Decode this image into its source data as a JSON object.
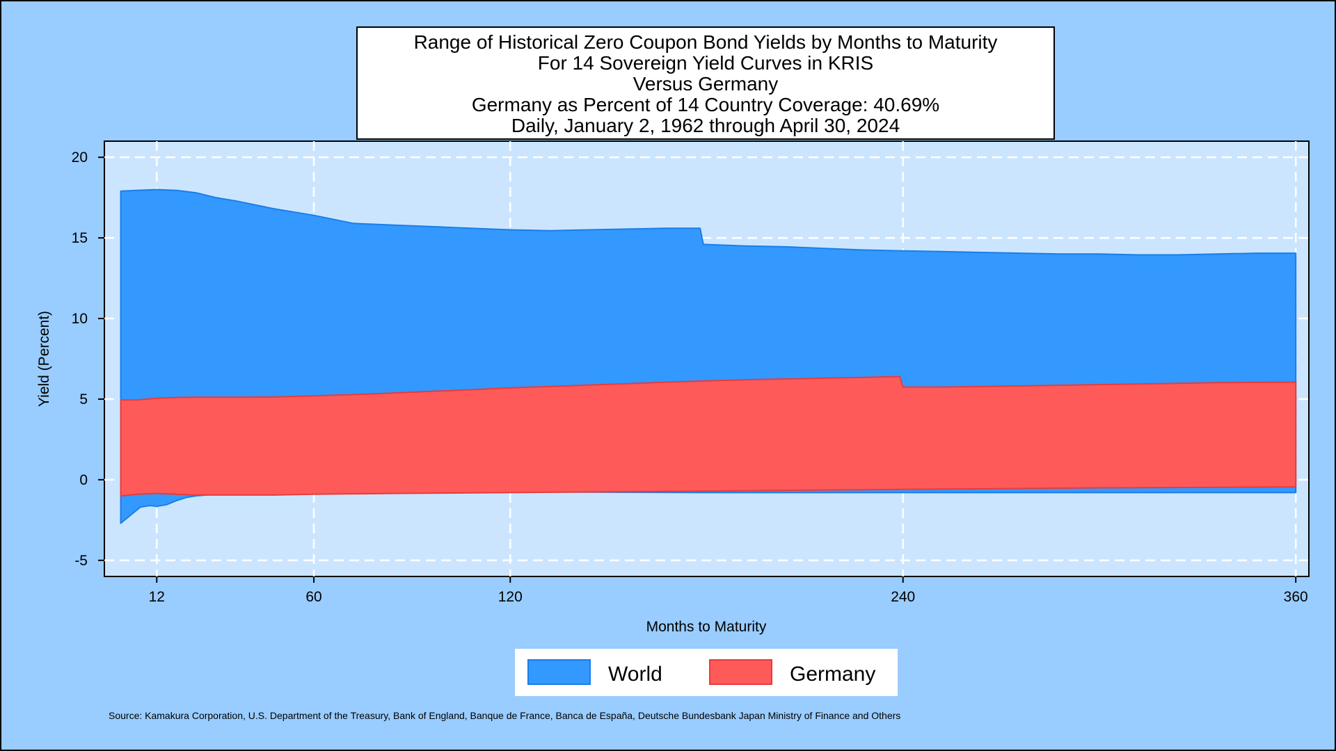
{
  "chart_data": {
    "type": "area",
    "title_lines": [
      "Range of Historical Zero Coupon Bond Yields by Months to Maturity",
      "For 14 Sovereign Yield Curves in KRIS",
      "Versus Germany",
      "Germany as Percent of 14 Country Coverage: 40.69%",
      "Daily, January 2, 1962 through April 30, 2024"
    ],
    "xlabel": "Months to Maturity",
    "ylabel": "Yield (Percent)",
    "xlim": [
      -4,
      364
    ],
    "ylim": [
      -6,
      21
    ],
    "x_ticks": [
      12,
      60,
      120,
      240,
      360
    ],
    "y_ticks": [
      20,
      15,
      10,
      5,
      0,
      -5
    ],
    "y_tick_labels": [
      "20",
      "15",
      "10",
      "5",
      "0",
      "-5"
    ],
    "grid": true,
    "legend_position": "bottom",
    "series": [
      {
        "name": "World",
        "color": "#3399ff",
        "upper": [
          [
            1,
            17.9
          ],
          [
            6,
            17.95
          ],
          [
            12,
            18.0
          ],
          [
            18,
            17.95
          ],
          [
            24,
            17.8
          ],
          [
            30,
            17.5
          ],
          [
            36,
            17.3
          ],
          [
            48,
            16.8
          ],
          [
            60,
            16.4
          ],
          [
            72,
            15.9
          ],
          [
            84,
            15.8
          ],
          [
            96,
            15.7
          ],
          [
            108,
            15.6
          ],
          [
            120,
            15.5
          ],
          [
            132,
            15.45
          ],
          [
            144,
            15.5
          ],
          [
            156,
            15.55
          ],
          [
            168,
            15.6
          ],
          [
            178,
            15.6
          ],
          [
            179,
            14.6
          ],
          [
            192,
            14.5
          ],
          [
            204,
            14.45
          ],
          [
            216,
            14.35
          ],
          [
            228,
            14.25
          ],
          [
            240,
            14.2
          ],
          [
            252,
            14.15
          ],
          [
            264,
            14.1
          ],
          [
            276,
            14.05
          ],
          [
            288,
            14.0
          ],
          [
            300,
            14.0
          ],
          [
            312,
            13.95
          ],
          [
            324,
            13.95
          ],
          [
            336,
            14.0
          ],
          [
            348,
            14.05
          ],
          [
            360,
            14.05
          ]
        ],
        "lower": [
          [
            1,
            -2.7
          ],
          [
            4,
            -2.2
          ],
          [
            7,
            -1.7
          ],
          [
            10,
            -1.6
          ],
          [
            12,
            -1.65
          ],
          [
            15,
            -1.55
          ],
          [
            18,
            -1.3
          ],
          [
            21,
            -1.1
          ],
          [
            24,
            -1.0
          ],
          [
            30,
            -0.9
          ],
          [
            36,
            -0.85
          ],
          [
            48,
            -0.85
          ],
          [
            60,
            -0.85
          ],
          [
            84,
            -0.8
          ],
          [
            120,
            -0.75
          ],
          [
            180,
            -0.8
          ],
          [
            240,
            -0.8
          ],
          [
            300,
            -0.8
          ],
          [
            360,
            -0.8
          ]
        ]
      },
      {
        "name": "Germany",
        "color": "#ff5a5a",
        "upper": [
          [
            1,
            4.95
          ],
          [
            6,
            4.95
          ],
          [
            12,
            5.05
          ],
          [
            18,
            5.1
          ],
          [
            24,
            5.12
          ],
          [
            36,
            5.12
          ],
          [
            48,
            5.13
          ],
          [
            60,
            5.2
          ],
          [
            72,
            5.28
          ],
          [
            84,
            5.38
          ],
          [
            96,
            5.48
          ],
          [
            108,
            5.58
          ],
          [
            120,
            5.7
          ],
          [
            132,
            5.78
          ],
          [
            144,
            5.87
          ],
          [
            156,
            5.96
          ],
          [
            168,
            6.05
          ],
          [
            180,
            6.13
          ],
          [
            192,
            6.2
          ],
          [
            204,
            6.25
          ],
          [
            216,
            6.3
          ],
          [
            228,
            6.35
          ],
          [
            239,
            6.4
          ],
          [
            240,
            5.75
          ],
          [
            252,
            5.75
          ],
          [
            264,
            5.78
          ],
          [
            276,
            5.82
          ],
          [
            288,
            5.86
          ],
          [
            300,
            5.9
          ],
          [
            312,
            5.94
          ],
          [
            324,
            5.98
          ],
          [
            336,
            6.02
          ],
          [
            348,
            6.04
          ],
          [
            360,
            6.05
          ]
        ],
        "lower": [
          [
            1,
            -1.0
          ],
          [
            6,
            -0.9
          ],
          [
            12,
            -0.85
          ],
          [
            18,
            -0.9
          ],
          [
            24,
            -0.95
          ],
          [
            36,
            -0.95
          ],
          [
            48,
            -0.95
          ],
          [
            60,
            -0.9
          ],
          [
            84,
            -0.85
          ],
          [
            120,
            -0.8
          ],
          [
            180,
            -0.7
          ],
          [
            240,
            -0.6
          ],
          [
            300,
            -0.5
          ],
          [
            360,
            -0.45
          ]
        ]
      }
    ],
    "source": "Source: Kamakura Corporation, U.S. Department of the Treasury, Bank of England, Banque de France, Banca de España, Deutsche Bundesbank Japan Ministry of Finance and Others"
  }
}
